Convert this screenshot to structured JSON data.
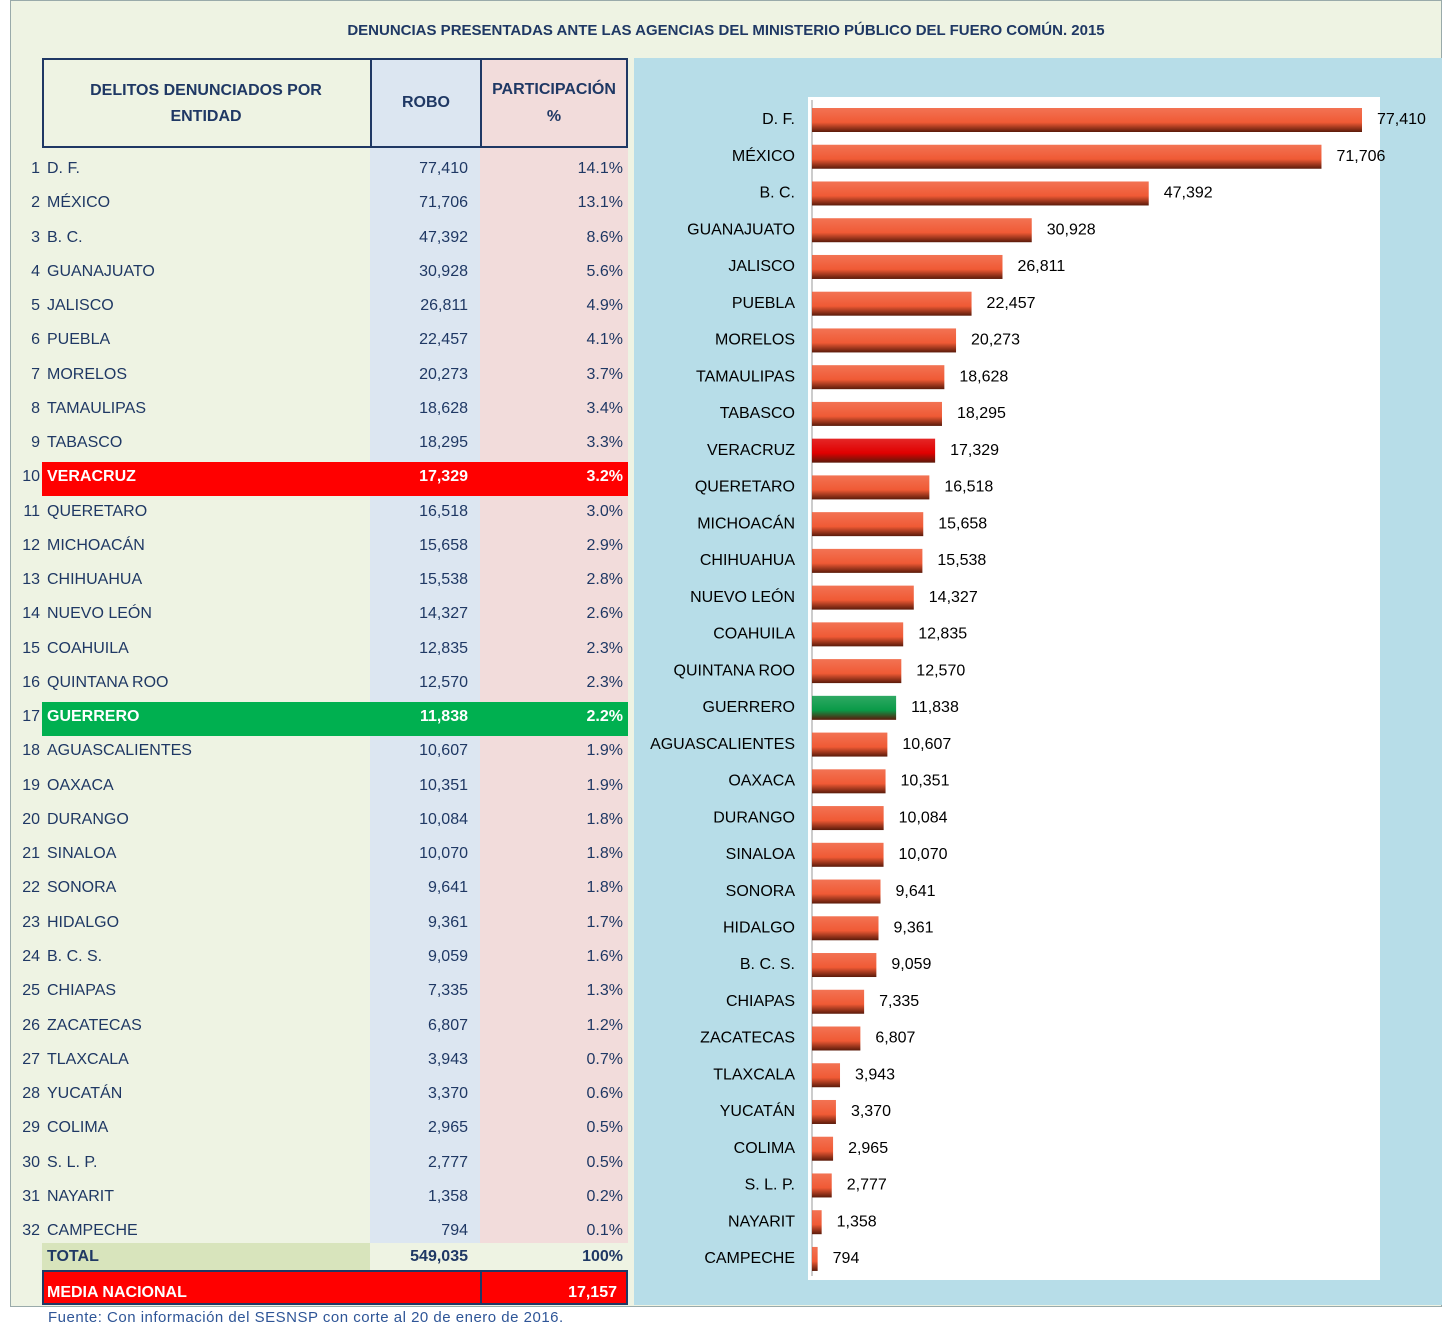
{
  "title": "DENUNCIAS PRESENTADAS ANTE LAS AGENCIAS DEL MINISTERIO PÚBLICO DEL FUERO COMÚN. 2015",
  "table": {
    "headers": [
      "DELITOS DENUNCIADOS POR ENTIDAD",
      "ROBO",
      "PARTICIPACIÓN %"
    ],
    "rows": [
      [
        "1",
        "D. F.",
        "77,410",
        "14.1%"
      ],
      [
        "2",
        "MÉXICO",
        "71,706",
        "13.1%"
      ],
      [
        "3",
        "B. C.",
        "47,392",
        "8.6%"
      ],
      [
        "4",
        "GUANAJUATO",
        "30,928",
        "5.6%"
      ],
      [
        "5",
        "JALISCO",
        "26,811",
        "4.9%"
      ],
      [
        "6",
        "PUEBLA",
        "22,457",
        "4.1%"
      ],
      [
        "7",
        "MORELOS",
        "20,273",
        "3.7%"
      ],
      [
        "8",
        "TAMAULIPAS",
        "18,628",
        "3.4%"
      ],
      [
        "9",
        "TABASCO",
        "18,295",
        "3.3%"
      ],
      [
        "10",
        "VERACRUZ",
        "17,329",
        "3.2%"
      ],
      [
        "11",
        "QUERETARO",
        "16,518",
        "3.0%"
      ],
      [
        "12",
        "MICHOACÁN",
        "15,658",
        "2.9%"
      ],
      [
        "13",
        "CHIHUAHUA",
        "15,538",
        "2.8%"
      ],
      [
        "14",
        "NUEVO LEÓN",
        "14,327",
        "2.6%"
      ],
      [
        "15",
        "COAHUILA",
        "12,835",
        "2.3%"
      ],
      [
        "16",
        "QUINTANA ROO",
        "12,570",
        "2.3%"
      ],
      [
        "17",
        "GUERRERO",
        "11,838",
        "2.2%"
      ],
      [
        "18",
        "AGUASCALIENTES",
        "10,607",
        "1.9%"
      ],
      [
        "19",
        "OAXACA",
        "10,351",
        "1.9%"
      ],
      [
        "20",
        "DURANGO",
        "10,084",
        "1.8%"
      ],
      [
        "21",
        "SINALOA",
        "10,070",
        "1.8%"
      ],
      [
        "22",
        "SONORA",
        "9,641",
        "1.8%"
      ],
      [
        "23",
        "HIDALGO",
        "9,361",
        "1.7%"
      ],
      [
        "24",
        "B. C. S.",
        "9,059",
        "1.6%"
      ],
      [
        "25",
        "CHIAPAS",
        "7,335",
        "1.3%"
      ],
      [
        "26",
        "ZACATECAS",
        "6,807",
        "1.2%"
      ],
      [
        "27",
        "TLAXCALA",
        "3,943",
        "0.7%"
      ],
      [
        "28",
        "YUCATÁN",
        "3,370",
        "0.6%"
      ],
      [
        "29",
        "COLIMA",
        "2,965",
        "0.5%"
      ],
      [
        "30",
        "S. L. P.",
        "2,777",
        "0.5%"
      ],
      [
        "31",
        "NAYARIT",
        "1,358",
        "0.2%"
      ],
      [
        "32",
        "CAMPECHE",
        "794",
        "0.1%"
      ]
    ],
    "highlights": [
      {
        "row": 9,
        "color": "#ff0000"
      },
      {
        "row": 16,
        "color": "#00b050"
      }
    ],
    "total": [
      "TOTAL",
      "549,035",
      "100%"
    ],
    "media": [
      "MEDIA NACIONAL",
      "17,157"
    ]
  },
  "chart_data": {
    "type": "bar",
    "orientation": "horizontal",
    "categories": [
      "D. F.",
      "MÉXICO",
      "B. C.",
      "GUANAJUATO",
      "JALISCO",
      "PUEBLA",
      "MORELOS",
      "TAMAULIPAS",
      "TABASCO",
      "VERACRUZ",
      "QUERETARO",
      "MICHOACÁN",
      "CHIHUAHUA",
      "NUEVO LEÓN",
      "COAHUILA",
      "QUINTANA ROO",
      "GUERRERO",
      "AGUASCALIENTES",
      "OAXACA",
      "DURANGO",
      "SINALOA",
      "SONORA",
      "HIDALGO",
      "B. C. S.",
      "CHIAPAS",
      "ZACATECAS",
      "TLAXCALA",
      "YUCATÁN",
      "COLIMA",
      "S. L. P.",
      "NAYARIT",
      "CAMPECHE"
    ],
    "values": [
      77410,
      71706,
      47392,
      30928,
      26811,
      22457,
      20273,
      18628,
      18295,
      17329,
      16518,
      15658,
      15538,
      14327,
      12835,
      12570,
      11838,
      10607,
      10351,
      10084,
      10070,
      9641,
      9361,
      9059,
      7335,
      6807,
      3943,
      3370,
      2965,
      2777,
      1358,
      794
    ],
    "value_labels": [
      "77,410",
      "71,706",
      "47,392",
      "30,928",
      "26,811",
      "22,457",
      "20,273",
      "18,628",
      "18,295",
      "17,329",
      "16,518",
      "15,658",
      "15,538",
      "14,327",
      "12,835",
      "12,570",
      "11,838",
      "10,607",
      "10,351",
      "10,084",
      "10,070",
      "9,641",
      "9,361",
      "9,059",
      "7,335",
      "6,807",
      "3,943",
      "3,370",
      "2,965",
      "2,777",
      "1,358",
      "794"
    ],
    "colors": [
      "#f05a35",
      "#f05a35",
      "#f05a35",
      "#f05a35",
      "#f05a35",
      "#f05a35",
      "#f05a35",
      "#f05a35",
      "#f05a35",
      "#e00000",
      "#f05a35",
      "#f05a35",
      "#f05a35",
      "#f05a35",
      "#f05a35",
      "#f05a35",
      "#0a9a48",
      "#f05a35",
      "#f05a35",
      "#f05a35",
      "#f05a35",
      "#f05a35",
      "#f05a35",
      "#f05a35",
      "#f05a35",
      "#f05a35",
      "#f05a35",
      "#f05a35",
      "#f05a35",
      "#f05a35",
      "#f05a35",
      "#f05a35"
    ]
  },
  "source": "Fuente: Con información del SESNSP con corte al 20 de enero de 2016."
}
